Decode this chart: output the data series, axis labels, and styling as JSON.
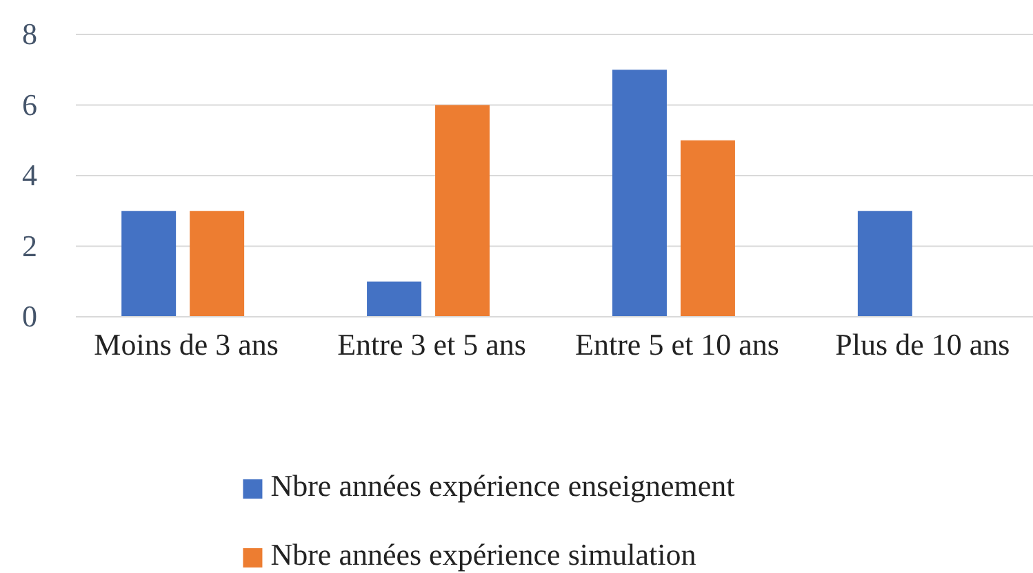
{
  "chart_data": {
    "type": "bar",
    "categories": [
      "Moins de 3 ans",
      "Entre 3 et 5 ans",
      "Entre 5 et 10 ans",
      "Plus de 10 ans"
    ],
    "series": [
      {
        "name": "Nbre années expérience enseignement",
        "color": "#4472c4",
        "values": [
          3,
          1,
          7,
          3
        ]
      },
      {
        "name": "Nbre années expérience simulation",
        "color": "#ed7d31",
        "values": [
          3,
          6,
          5,
          0
        ]
      }
    ],
    "ylim": [
      0,
      8
    ],
    "yticks": [
      0,
      2,
      4,
      6,
      8
    ],
    "grid": "y",
    "legend": "bottom"
  }
}
